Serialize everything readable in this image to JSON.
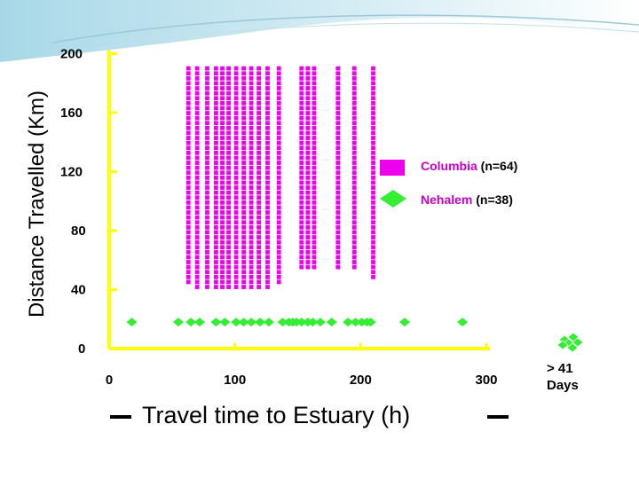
{
  "chart_data": {
    "type": "scatter",
    "title": "",
    "xlabel": "Travel time to Estuary (h)",
    "ylabel": "Distance Travelled (Km)",
    "xlim": [
      0,
      300
    ],
    "ylim": [
      0,
      200
    ],
    "x_ticks": [
      "0",
      "100",
      "200",
      "300"
    ],
    "y_ticks": [
      "0",
      "40",
      "80",
      "120",
      "160",
      "200"
    ],
    "overflow_label": "> 41 Days",
    "overflow_label_lines": [
      "> 41",
      "Days"
    ],
    "axis_color": "#ffff00",
    "series": [
      {
        "name": "Columbia",
        "n_label": "(n=64)",
        "color": "#ee00ee",
        "marker": "square",
        "x": [
          63,
          70,
          78,
          85,
          90,
          95,
          101,
          107,
          113,
          119,
          126,
          135,
          153,
          158,
          163,
          182,
          195,
          210
        ],
        "y_top": [
          190,
          190,
          190,
          190,
          190,
          190,
          190,
          190,
          190,
          190,
          190,
          190,
          190,
          190,
          190,
          190,
          190,
          190
        ],
        "y_bottom": [
          44,
          40,
          40,
          40,
          40,
          40,
          40,
          40,
          40,
          40,
          40,
          42,
          54,
          54,
          54,
          54,
          54,
          48
        ]
      },
      {
        "name": "Nehalem",
        "n_label": "(n=38)",
        "color": "#33ee33",
        "marker": "diamond",
        "x": [
          18,
          55,
          65,
          72,
          85,
          92,
          101,
          107,
          113,
          120,
          127,
          138,
          143,
          146,
          149,
          153,
          158,
          162,
          168,
          177,
          190,
          196,
          201,
          205,
          208,
          235,
          281
        ],
        "y": [
          18,
          18,
          18,
          18,
          18,
          18,
          18,
          18,
          18,
          18,
          18,
          18,
          18,
          18,
          18,
          18,
          18,
          18,
          18,
          18,
          18,
          18,
          18,
          18,
          18,
          18,
          18
        ],
        "overflow_cluster": 6
      }
    ],
    "legend_position": "right-middle"
  }
}
